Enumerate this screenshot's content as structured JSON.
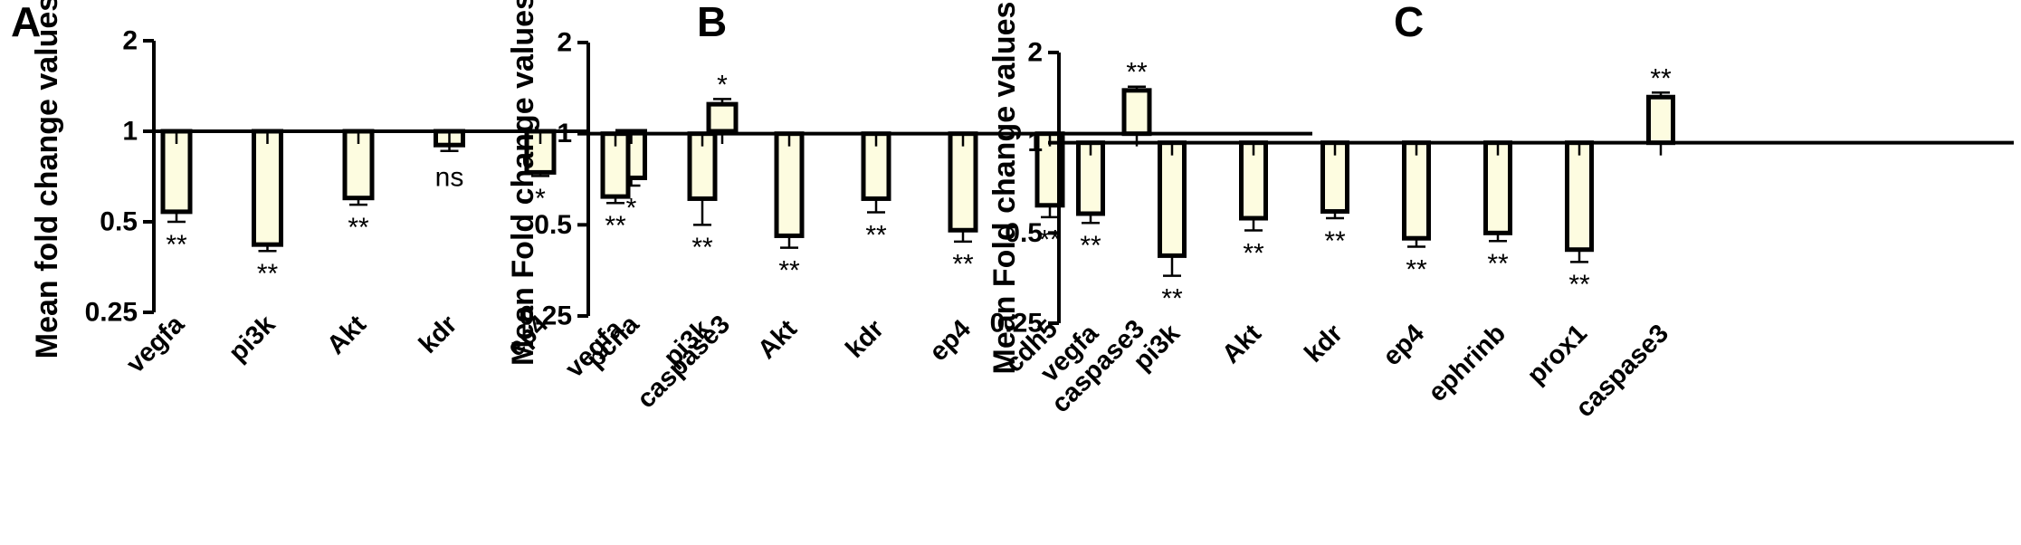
{
  "chart_data": [
    {
      "type": "bar",
      "panel": "A",
      "ylabel": "Mean fold change values",
      "yscale": "log2",
      "ylim": [
        0.25,
        2
      ],
      "yticks": [
        "0.25",
        "0.5",
        "1",
        "2"
      ],
      "baseline": 1,
      "bar_color": "#fdfce0",
      "categories": [
        "vegfa",
        "pi3k",
        "Akt",
        "kdr",
        "ep4",
        "pcna",
        "caspase3"
      ],
      "values": [
        0.54,
        0.42,
        0.6,
        0.9,
        0.73,
        0.7,
        1.23
      ],
      "errors": [
        0.04,
        0.02,
        0.03,
        0.04,
        0.02,
        0.04,
        0.05
      ],
      "significance": [
        "**",
        "**",
        "**",
        "ns",
        "*",
        "*",
        "*"
      ]
    },
    {
      "type": "bar",
      "panel": "B",
      "ylabel": "Mean Fold change values",
      "yscale": "log2",
      "ylim": [
        0.25,
        2
      ],
      "yticks": [
        "0.25",
        "0.5",
        "1",
        "2"
      ],
      "baseline": 1,
      "bar_color": "#fdfce0",
      "categories": [
        "vegfa",
        "pi3k",
        "Akt",
        "kdr",
        "ep4",
        "cdh5",
        "caspase3"
      ],
      "values": [
        0.62,
        0.61,
        0.46,
        0.61,
        0.48,
        0.58,
        1.39
      ],
      "errors": [
        0.03,
        0.11,
        0.04,
        0.06,
        0.04,
        0.05,
        0.04
      ],
      "significance": [
        "**",
        "**",
        "**",
        "**",
        "**",
        "**",
        "**"
      ]
    },
    {
      "type": "bar",
      "panel": "C",
      "ylabel": "Mean Fold change values",
      "yscale": "log2",
      "ylim": [
        0.25,
        2
      ],
      "yticks": [
        "0.25",
        "0.5",
        "1",
        "2"
      ],
      "baseline": 1,
      "bar_color": "#fdfce0",
      "categories": [
        "vegfa",
        "pi3k",
        "Akt",
        "kdr",
        "ep4",
        "ephrinb",
        "prox1",
        "caspase3"
      ],
      "values": [
        0.58,
        0.42,
        0.56,
        0.59,
        0.48,
        0.5,
        0.44,
        1.42
      ],
      "errors": [
        0.04,
        0.06,
        0.05,
        0.03,
        0.03,
        0.03,
        0.04,
        0.05
      ],
      "significance": [
        "**",
        "**",
        "**",
        "**",
        "**",
        "**",
        "**",
        "**"
      ]
    }
  ]
}
